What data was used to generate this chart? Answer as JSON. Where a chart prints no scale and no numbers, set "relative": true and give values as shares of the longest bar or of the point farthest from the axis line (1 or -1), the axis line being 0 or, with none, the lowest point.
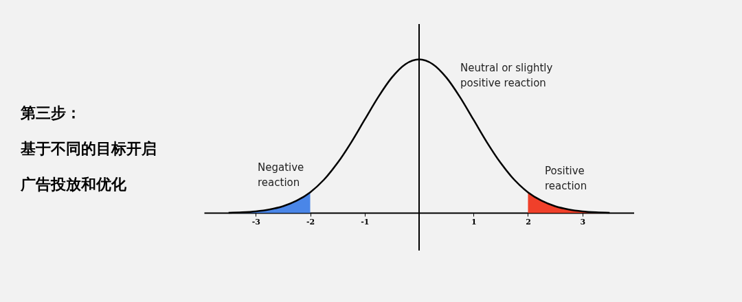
{
  "chart_data": {
    "type": "line",
    "relative": true,
    "xlim": [
      -3.95,
      3.95
    ],
    "xticks": [
      -3,
      -2,
      -1,
      1,
      2,
      3
    ],
    "grid": false,
    "series": [
      {
        "type": "area",
        "color": "#4a86e8",
        "x": [
          -3.5,
          -3.25,
          -3,
          -2.75,
          -2.5,
          -2.25,
          -2
        ],
        "values": [
          0.002,
          0.005,
          0.011,
          0.023,
          0.044,
          0.08,
          0.135
        ]
      },
      {
        "type": "area",
        "color": "#f0402a",
        "x": [
          2,
          2.25,
          2.5,
          2.75,
          3,
          3.25,
          3.5
        ],
        "values": [
          0.135,
          0.08,
          0.044,
          0.023,
          0.011,
          0.005,
          0.002
        ]
      },
      {
        "color": "#000000",
        "x": [
          -3.5,
          -3.25,
          -3,
          -2.75,
          -2.5,
          -2.25,
          -2,
          -1.75,
          -1.5,
          -1.25,
          -1,
          -0.75,
          -0.5,
          -0.25,
          0,
          0.25,
          0.5,
          0.75,
          1,
          1.25,
          1.5,
          1.75,
          2,
          2.25,
          2.5,
          2.75,
          3,
          3.25,
          3.5
        ],
        "values": [
          0.002,
          0.005,
          0.011,
          0.023,
          0.044,
          0.08,
          0.135,
          0.216,
          0.325,
          0.458,
          0.607,
          0.755,
          0.882,
          0.969,
          1,
          0.969,
          0.882,
          0.755,
          0.607,
          0.458,
          0.325,
          0.216,
          0.135,
          0.08,
          0.044,
          0.023,
          0.011,
          0.005,
          0.002
        ]
      }
    ],
    "ref_lines": [
      {
        "axis": "x",
        "value": 0,
        "color": "#000000"
      }
    ],
    "annotations": [
      "第三步：",
      "基于不同的目标开启",
      "广告投放和优化",
      "Neutral or slightly\npositive reaction",
      "Negative\nreaction",
      "Positive\nreaction"
    ]
  }
}
